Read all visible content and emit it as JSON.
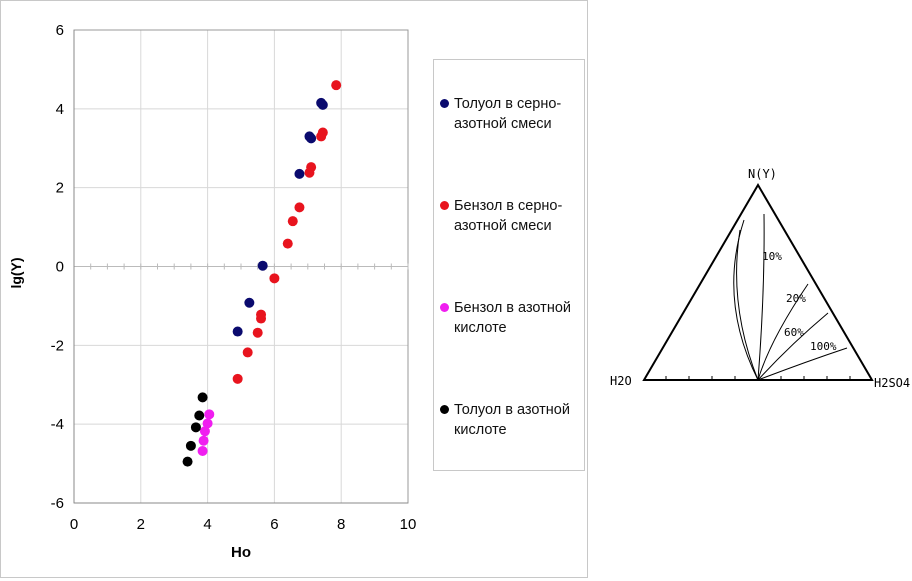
{
  "chart_data": [
    {
      "type": "scatter",
      "title": "",
      "xlabel": "Ho",
      "ylabel": "lg(Y)",
      "xlim": [
        0,
        10
      ],
      "ylim": [
        -6,
        6
      ],
      "xticks": [
        "0",
        "2",
        "4",
        "6",
        "8",
        "10"
      ],
      "yticks": [
        "-6",
        "-4",
        "-2",
        "0",
        "2",
        "4",
        "6"
      ],
      "grid": true,
      "legend_position": "right",
      "series": [
        {
          "name": "Толуол в серно-азотной смеси",
          "color": "#0a0a6e",
          "points": [
            [
              4.9,
              -1.65
            ],
            [
              5.25,
              -0.92
            ],
            [
              5.65,
              0.02
            ],
            [
              6.75,
              2.35
            ],
            [
              7.05,
              3.3
            ],
            [
              7.1,
              3.25
            ],
            [
              7.4,
              4.15
            ],
            [
              7.45,
              4.1
            ]
          ]
        },
        {
          "name": "Бензол в серно-азотной смеси",
          "color": "#e8141e",
          "points": [
            [
              4.9,
              -2.85
            ],
            [
              5.2,
              -2.18
            ],
            [
              5.5,
              -1.68
            ],
            [
              5.6,
              -1.32
            ],
            [
              5.6,
              -1.22
            ],
            [
              6.0,
              -0.3
            ],
            [
              6.4,
              0.58
            ],
            [
              6.55,
              1.15
            ],
            [
              6.75,
              1.5
            ],
            [
              7.05,
              2.38
            ],
            [
              7.1,
              2.52
            ],
            [
              7.4,
              3.3
            ],
            [
              7.45,
              3.4
            ],
            [
              7.85,
              4.6
            ]
          ]
        },
        {
          "name": "Бензол в азотной кислоте",
          "color": "#f01ef0",
          "points": [
            [
              4.05,
              -3.75
            ],
            [
              4.0,
              -3.98
            ],
            [
              3.92,
              -4.18
            ],
            [
              3.88,
              -4.42
            ],
            [
              3.85,
              -4.68
            ]
          ]
        },
        {
          "name": "Толуол в азотной кислоте",
          "color": "#000000",
          "points": [
            [
              3.85,
              -3.32
            ],
            [
              3.75,
              -3.78
            ],
            [
              3.65,
              -4.08
            ],
            [
              3.5,
              -4.55
            ],
            [
              3.4,
              -4.95
            ]
          ]
        }
      ]
    },
    {
      "type": "ternary",
      "vertices": {
        "top": "N(Y)",
        "left": "H2O",
        "right": "H2SO4"
      },
      "curve_labels": [
        "10%",
        "20%",
        "60%",
        "100%"
      ]
    }
  ]
}
